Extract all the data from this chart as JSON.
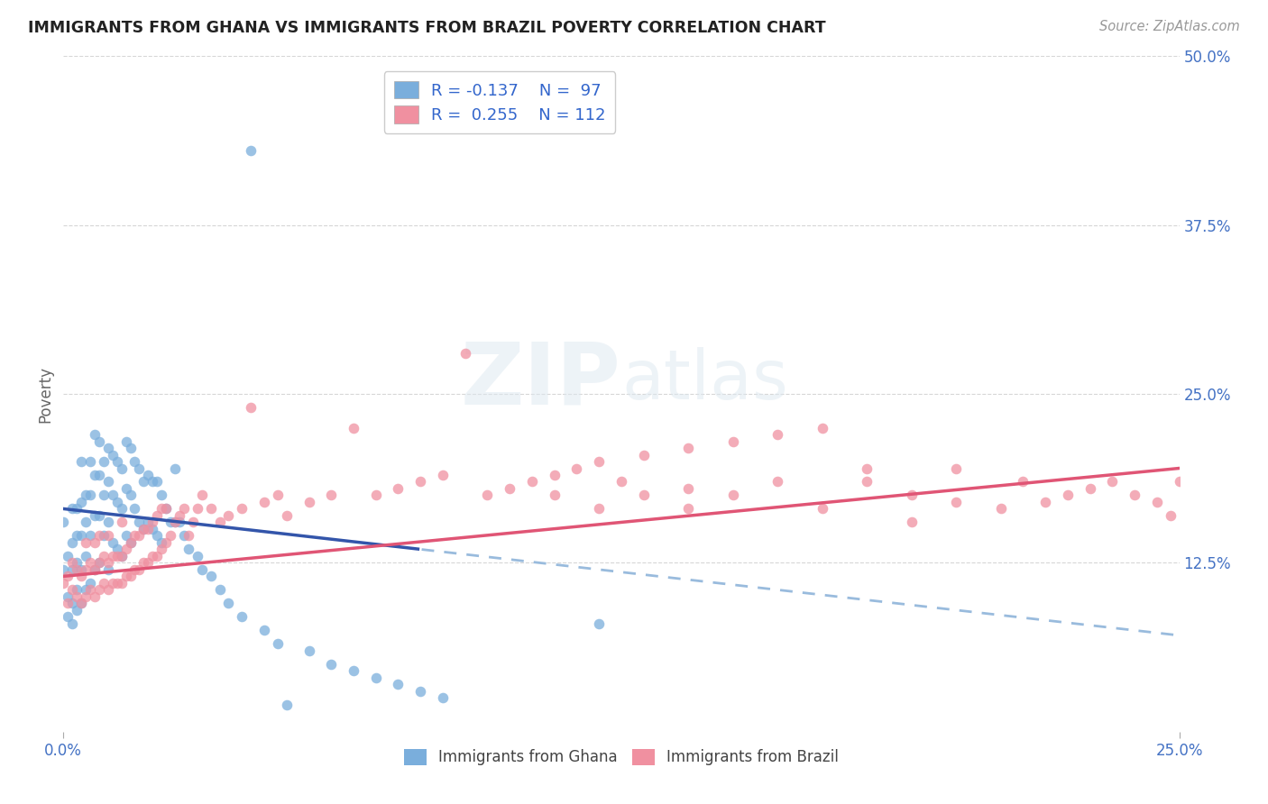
{
  "title": "IMMIGRANTS FROM GHANA VS IMMIGRANTS FROM BRAZIL POVERTY CORRELATION CHART",
  "source": "Source: ZipAtlas.com",
  "ylabel_label": "Poverty",
  "watermark": "ZIPatlas",
  "background_color": "#ffffff",
  "ghana_color": "#7aaedc",
  "brazil_color": "#f090a0",
  "ghana_line_color": "#3355aa",
  "brazil_line_color": "#e05575",
  "ghana_dashed_color": "#99bbdd",
  "xlim": [
    0.0,
    0.25
  ],
  "ylim": [
    0.0,
    0.5
  ],
  "ghana_R": -0.137,
  "ghana_N": 97,
  "brazil_R": 0.255,
  "brazil_N": 112,
  "ghana_scatter_x": [
    0.0,
    0.0,
    0.001,
    0.001,
    0.001,
    0.002,
    0.002,
    0.002,
    0.002,
    0.002,
    0.003,
    0.003,
    0.003,
    0.003,
    0.003,
    0.004,
    0.004,
    0.004,
    0.004,
    0.004,
    0.005,
    0.005,
    0.005,
    0.005,
    0.006,
    0.006,
    0.006,
    0.006,
    0.007,
    0.007,
    0.007,
    0.007,
    0.008,
    0.008,
    0.008,
    0.008,
    0.009,
    0.009,
    0.009,
    0.01,
    0.01,
    0.01,
    0.01,
    0.011,
    0.011,
    0.011,
    0.012,
    0.012,
    0.012,
    0.013,
    0.013,
    0.013,
    0.014,
    0.014,
    0.014,
    0.015,
    0.015,
    0.015,
    0.016,
    0.016,
    0.017,
    0.017,
    0.018,
    0.018,
    0.019,
    0.019,
    0.02,
    0.02,
    0.021,
    0.021,
    0.022,
    0.022,
    0.023,
    0.024,
    0.025,
    0.025,
    0.026,
    0.027,
    0.028,
    0.03,
    0.031,
    0.033,
    0.035,
    0.037,
    0.04,
    0.042,
    0.045,
    0.048,
    0.05,
    0.055,
    0.06,
    0.065,
    0.07,
    0.075,
    0.08,
    0.085,
    0.12
  ],
  "ghana_scatter_y": [
    0.155,
    0.12,
    0.13,
    0.1,
    0.085,
    0.165,
    0.14,
    0.12,
    0.095,
    0.08,
    0.165,
    0.145,
    0.125,
    0.105,
    0.09,
    0.2,
    0.17,
    0.145,
    0.12,
    0.095,
    0.175,
    0.155,
    0.13,
    0.105,
    0.2,
    0.175,
    0.145,
    0.11,
    0.22,
    0.19,
    0.16,
    0.12,
    0.215,
    0.19,
    0.16,
    0.125,
    0.2,
    0.175,
    0.145,
    0.21,
    0.185,
    0.155,
    0.12,
    0.205,
    0.175,
    0.14,
    0.2,
    0.17,
    0.135,
    0.195,
    0.165,
    0.13,
    0.215,
    0.18,
    0.145,
    0.21,
    0.175,
    0.14,
    0.2,
    0.165,
    0.195,
    0.155,
    0.185,
    0.15,
    0.19,
    0.155,
    0.185,
    0.15,
    0.185,
    0.145,
    0.175,
    0.14,
    0.165,
    0.155,
    0.195,
    0.155,
    0.155,
    0.145,
    0.135,
    0.13,
    0.12,
    0.115,
    0.105,
    0.095,
    0.085,
    0.43,
    0.075,
    0.065,
    0.02,
    0.06,
    0.05,
    0.045,
    0.04,
    0.035,
    0.03,
    0.025,
    0.08
  ],
  "brazil_scatter_x": [
    0.0,
    0.001,
    0.001,
    0.002,
    0.002,
    0.003,
    0.003,
    0.004,
    0.004,
    0.005,
    0.005,
    0.005,
    0.006,
    0.006,
    0.007,
    0.007,
    0.007,
    0.008,
    0.008,
    0.008,
    0.009,
    0.009,
    0.01,
    0.01,
    0.01,
    0.011,
    0.011,
    0.012,
    0.012,
    0.013,
    0.013,
    0.013,
    0.014,
    0.014,
    0.015,
    0.015,
    0.016,
    0.016,
    0.017,
    0.017,
    0.018,
    0.018,
    0.019,
    0.019,
    0.02,
    0.02,
    0.021,
    0.021,
    0.022,
    0.022,
    0.023,
    0.023,
    0.024,
    0.025,
    0.026,
    0.027,
    0.028,
    0.029,
    0.03,
    0.031,
    0.033,
    0.035,
    0.037,
    0.04,
    0.042,
    0.045,
    0.048,
    0.05,
    0.055,
    0.06,
    0.065,
    0.07,
    0.075,
    0.08,
    0.085,
    0.09,
    0.095,
    0.1,
    0.105,
    0.11,
    0.115,
    0.12,
    0.13,
    0.14,
    0.15,
    0.16,
    0.17,
    0.18,
    0.19,
    0.2,
    0.21,
    0.215,
    0.22,
    0.225,
    0.23,
    0.235,
    0.24,
    0.245,
    0.248,
    0.25,
    0.19,
    0.2,
    0.15,
    0.16,
    0.17,
    0.18,
    0.14,
    0.14,
    0.13,
    0.125,
    0.12,
    0.11
  ],
  "brazil_scatter_y": [
    0.11,
    0.095,
    0.115,
    0.105,
    0.125,
    0.1,
    0.12,
    0.095,
    0.115,
    0.1,
    0.12,
    0.14,
    0.105,
    0.125,
    0.1,
    0.12,
    0.14,
    0.105,
    0.125,
    0.145,
    0.11,
    0.13,
    0.105,
    0.125,
    0.145,
    0.11,
    0.13,
    0.11,
    0.13,
    0.11,
    0.13,
    0.155,
    0.115,
    0.135,
    0.115,
    0.14,
    0.12,
    0.145,
    0.12,
    0.145,
    0.125,
    0.15,
    0.125,
    0.15,
    0.13,
    0.155,
    0.13,
    0.16,
    0.135,
    0.165,
    0.14,
    0.165,
    0.145,
    0.155,
    0.16,
    0.165,
    0.145,
    0.155,
    0.165,
    0.175,
    0.165,
    0.155,
    0.16,
    0.165,
    0.24,
    0.17,
    0.175,
    0.16,
    0.17,
    0.175,
    0.225,
    0.175,
    0.18,
    0.185,
    0.19,
    0.28,
    0.175,
    0.18,
    0.185,
    0.19,
    0.195,
    0.2,
    0.205,
    0.21,
    0.215,
    0.22,
    0.225,
    0.185,
    0.175,
    0.195,
    0.165,
    0.185,
    0.17,
    0.175,
    0.18,
    0.185,
    0.175,
    0.17,
    0.16,
    0.185,
    0.155,
    0.17,
    0.175,
    0.185,
    0.165,
    0.195,
    0.165,
    0.18,
    0.175,
    0.185,
    0.165,
    0.175
  ]
}
